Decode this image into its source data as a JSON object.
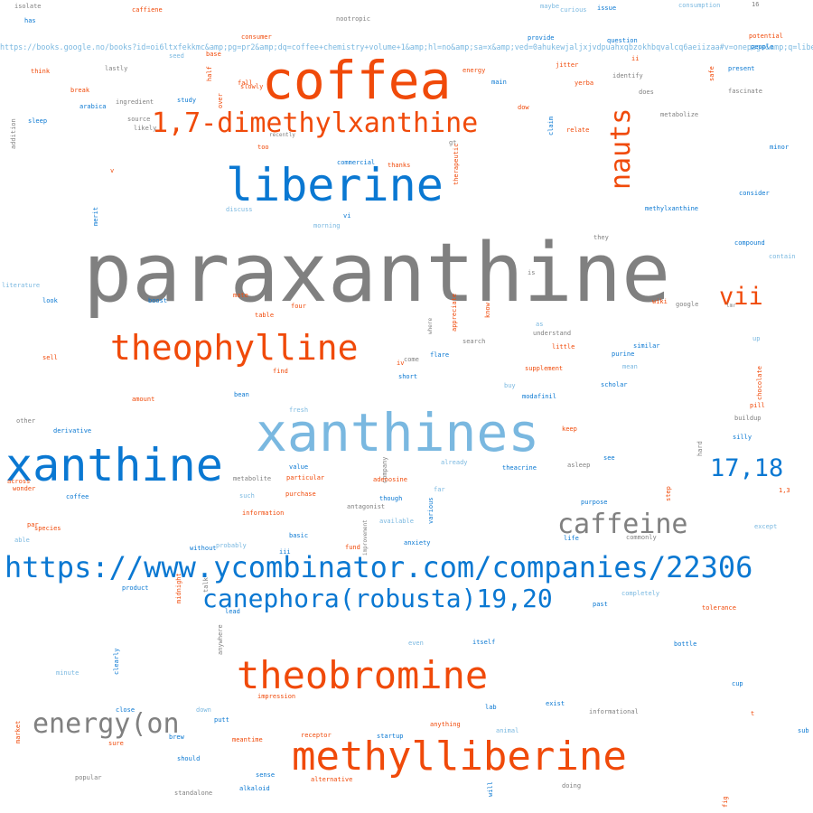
{
  "colors": {
    "gray": "#808080",
    "orange": "#f04a0a",
    "blue": "#0a78d2",
    "light_blue": "#7ab8e0"
  },
  "words": {
    "paraxanthine": "paraxanthine",
    "coffea": "coffea",
    "dimethylxanthine": "1,7-dimethylxanthine",
    "liberine": "liberine",
    "nauts": "nauts",
    "vii": "vii",
    "theophylline": "theophylline",
    "xanthines": "xanthines",
    "xanthine": "xanthine",
    "n1718": "17,18",
    "caffeine_big": "caffeine",
    "ycombinator": "https://www.ycombinator.com/companies/22306",
    "canephora": "canephora(robusta)19,20",
    "theobromine": "theobromine",
    "energy_on": "energy(on",
    "methylliberine": "methylliberine",
    "books_url": "https://books.google.no/books?id=oi6ltxfekkmc&amp;pg=pr2&amp;dq=coffee+chemistry+volume+1&amp;hl=no&amp;sa=x&amp;ved=0ahukewjaljxjvdpuahxqbzokhbqvalcq6aeiizaa#v=onepage&amp;q=liberine&amp;f=false",
    "isolate": "isolate",
    "has": "has",
    "caffiene": "caffiene",
    "nootropic": "nootropic",
    "maybe": "maybe",
    "curious": "curious",
    "issue": "issue",
    "consumption": "consumption",
    "n16": "16",
    "provide": "provide",
    "question": "question",
    "consumer": "consumer",
    "seed": "seed",
    "base": "base",
    "potential": "potential",
    "people": "people",
    "think": "think",
    "lastly": "lastly",
    "energy_small": "energy",
    "jitter": "jitter",
    "ii": "ii",
    "present": "present",
    "safe": "safe",
    "half": "half",
    "fall": "fall",
    "slowly": "slowly",
    "main": "main",
    "yerba": "yerba",
    "identify": "identify",
    "break": "break",
    "ingredient": "ingredient",
    "over": "over",
    "does": "does",
    "fascinate": "fascinate",
    "study": "study",
    "arabica": "arabica",
    "dow": "dow",
    "metabolize": "metabolize",
    "sleep": "sleep",
    "source": "source",
    "likely": "likely",
    "recently": "recently",
    "claim": "claim",
    "relate": "relate",
    "addition": "addition",
    "too": "too",
    "gt": "gt",
    "minor": "minor",
    "commercial": "commercial",
    "thanks": "thanks",
    "therapeutic": "therapeutic",
    "v": "v",
    "consider": "consider",
    "discuss": "discuss",
    "merit": "merit",
    "vi": "vi",
    "morning": "morning",
    "methylxanthine": "methylxanthine",
    "they": "they",
    "compound": "compound",
    "contain": "contain",
    "literature": "literature",
    "is": "is",
    "look": "look",
    "boost": "boost",
    "mate": "mate",
    "four": "four",
    "appreciate": "appreciate",
    "know": "know",
    "wiki": "wiki",
    "google": "google",
    "lmr": "lmr",
    "table": "table",
    "where": "where",
    "as": "as",
    "understand": "understand",
    "up": "up",
    "search": "search",
    "little": "little",
    "similar": "similar",
    "sell": "sell",
    "come": "come",
    "iv": "iv",
    "flare": "flare",
    "purine": "purine",
    "mean": "mean",
    "find": "find",
    "short": "short",
    "supplement": "supplement",
    "chocolate": "chocolate",
    "amount": "amount",
    "bean": "bean",
    "buy": "buy",
    "modafinil": "modafinil",
    "scholar": "scholar",
    "pill": "pill",
    "fresh": "fresh",
    "buildup": "buildup",
    "other": "other",
    "derivative": "derivative",
    "keep": "keep",
    "silly": "silly",
    "hard": "hard",
    "see": "see",
    "metabolite": "metabolite",
    "value": "value",
    "company": "company",
    "already": "already",
    "asleep": "asleep",
    "theacrine": "theacrine",
    "particular": "particular",
    "adenosine": "adenosine",
    "across": "across",
    "wonder": "wonder",
    "coffee_small": "coffee",
    "such": "such",
    "purchase": "purchase",
    "far": "far",
    "antagonist": "antagonist",
    "though": "though",
    "step": "step",
    "purpose": "purpose",
    "n13": "1,3",
    "information": "information",
    "various": "various",
    "par": "par",
    "species": "species",
    "available": "available",
    "except": "except",
    "improvement": "improvement",
    "able": "able",
    "basic": "basic",
    "fund": "fund",
    "anxiety": "anxiety",
    "life": "life",
    "commonly": "commonly",
    "without": "without",
    "probably": "probably",
    "iii": "iii",
    "talk": "talk",
    "product": "product",
    "midnight": "midnight",
    "lead": "lead",
    "completely": "completely",
    "past": "past",
    "tolerance": "tolerance",
    "anywhere": "anywhere",
    "even": "even",
    "itself": "itself",
    "bottle": "bottle",
    "clearly": "clearly",
    "minute": "minute",
    "cup": "cup",
    "impression": "impression",
    "lab": "lab",
    "exist": "exist",
    "informational": "informational",
    "close": "close",
    "down": "down",
    "t": "t",
    "market": "market",
    "putt": "putt",
    "anything": "anything",
    "receptor": "receptor",
    "startup": "startup",
    "animal": "animal",
    "sub": "sub",
    "brew": "brew",
    "sure": "sure",
    "meantime": "meantime",
    "should": "should",
    "sense": "sense",
    "alternative": "alternative",
    "will": "will",
    "doing": "doing",
    "popular": "popular",
    "alkaloid": "alkaloid",
    "standalone": "standalone",
    "fig": "fig"
  }
}
